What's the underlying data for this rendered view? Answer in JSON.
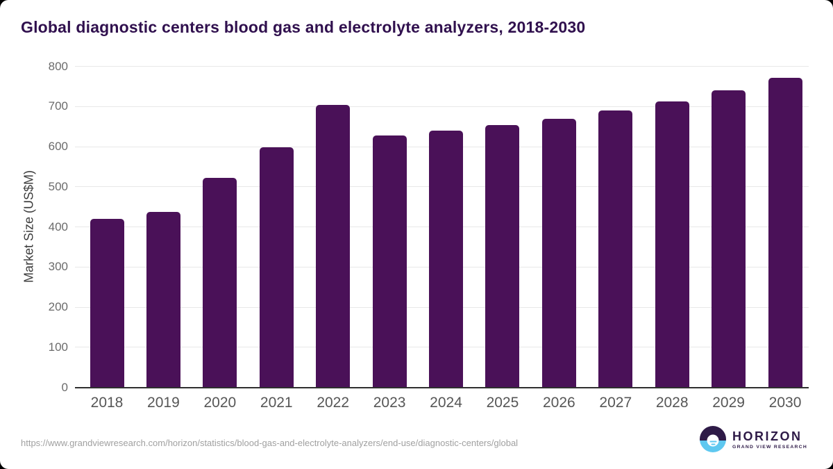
{
  "page": {
    "title": "Global diagnostic centers blood gas and electrolyte analyzers, 2018-2030"
  },
  "chart_data": {
    "type": "bar",
    "title": "Global diagnostic centers blood gas and electrolyte analyzers, 2018-2030",
    "categories": [
      "2018",
      "2019",
      "2020",
      "2021",
      "2022",
      "2023",
      "2024",
      "2025",
      "2026",
      "2027",
      "2028",
      "2029",
      "2030"
    ],
    "values": [
      420,
      438,
      522,
      598,
      704,
      627,
      640,
      653,
      670,
      690,
      713,
      741,
      772
    ],
    "xlabel": "",
    "ylabel": "Market Size (US$M)",
    "ylim": [
      0,
      800
    ],
    "yticks": [
      0,
      100,
      200,
      300,
      400,
      500,
      600,
      700,
      800
    ],
    "grid": "horizontal",
    "legend": "none",
    "bar_color": "#4a1158"
  },
  "footer": {
    "source_url": "https://www.grandviewresearch.com/horizon/statistics/blood-gas-and-electrolyte-analyzers/end-use/diagnostic-centers/global",
    "logo": {
      "title": "HORIZON",
      "subtitle": "GRAND VIEW RESEARCH"
    }
  },
  "colors": {
    "bar": "#4a1158",
    "title": "#30104e",
    "logo_purple": "#2e1a47",
    "logo_blue": "#5ec8f0",
    "gridline": "#e8e8e8",
    "axis_line": "#2f2f2f",
    "tick_label": "#6b6b6b",
    "source_url": "#a0a0a0"
  }
}
